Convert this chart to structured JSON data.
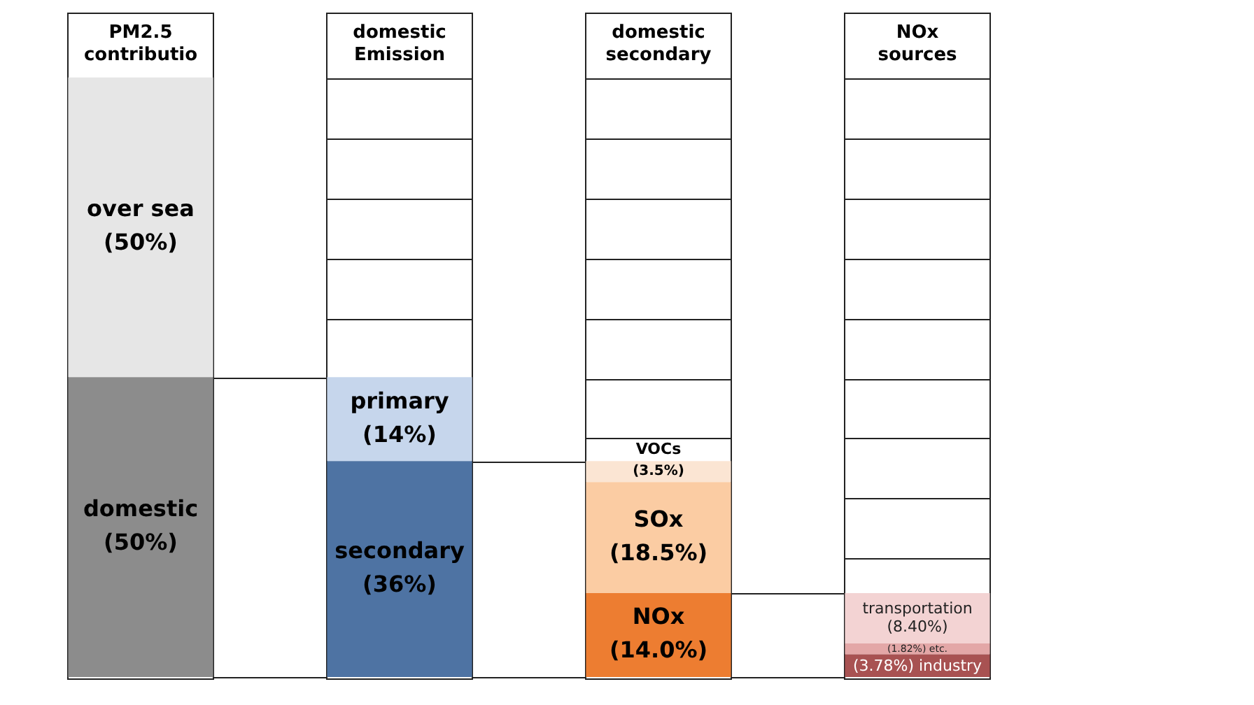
{
  "chart_data": {
    "type": "bar",
    "stacked": true,
    "categories": [
      "PM2.5 contributio",
      "domestic Emission",
      "domestic secondary",
      "NOx sources"
    ],
    "ylim": [
      0,
      100
    ],
    "tick_labels": "x",
    "legend": false,
    "series": [
      {
        "name": "domestic",
        "color": "#8c8c8c",
        "values": [
          50,
          null,
          null,
          null
        ],
        "value_labels": [
          "(50%)",
          null,
          null,
          null
        ]
      },
      {
        "name": "over sea",
        "color": "#e6e6e6",
        "values": [
          50,
          null,
          null,
          null
        ],
        "value_labels": [
          "(50%)",
          null,
          null,
          null
        ]
      },
      {
        "name": "secondary",
        "color": "#4e73a3",
        "values": [
          null,
          36,
          null,
          null
        ],
        "value_labels": [
          null,
          "(36%)",
          null,
          null
        ]
      },
      {
        "name": "primary",
        "color": "#c6d6ec",
        "values": [
          null,
          14,
          null,
          null
        ],
        "value_labels": [
          null,
          "(14%)",
          null,
          null
        ]
      },
      {
        "name": "NOx",
        "color": "#ed7d31",
        "values": [
          null,
          null,
          14.0,
          null
        ],
        "value_labels": [
          null,
          null,
          "(14.0%)",
          null
        ]
      },
      {
        "name": "SOx",
        "color": "#fbcca3",
        "values": [
          null,
          null,
          18.5,
          null
        ],
        "value_labels": [
          null,
          null,
          "(18.5%)",
          null
        ]
      },
      {
        "name": "VOCs",
        "color": "#fbe5d3",
        "values": [
          null,
          null,
          3.5,
          null
        ],
        "value_labels": [
          null,
          null,
          "(3.5%)",
          null
        ]
      },
      {
        "name": "industry",
        "color": "#a85252",
        "values": [
          null,
          null,
          null,
          3.78
        ],
        "value_labels": [
          null,
          null,
          null,
          "(3.78%)"
        ]
      },
      {
        "name": "etc.",
        "color": "#e3a7a7",
        "values": [
          null,
          null,
          null,
          1.82
        ],
        "value_labels": [
          null,
          null,
          null,
          "(1.82%)"
        ]
      },
      {
        "name": "transportation",
        "color": "#f3d3d3",
        "values": [
          null,
          null,
          null,
          8.4
        ],
        "value_labels": [
          null,
          null,
          null,
          "(8.40%)"
        ]
      }
    ]
  }
}
